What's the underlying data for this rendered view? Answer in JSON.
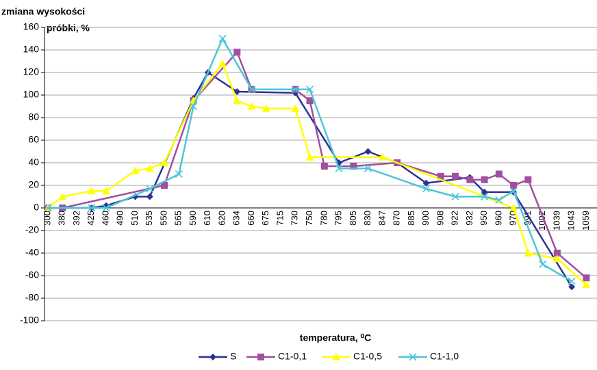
{
  "chart_data": {
    "type": "line",
    "ylabel": [
      "zmiana wysokości",
      "próbki, %"
    ],
    "xlabel": "temperatura, ⁰C",
    "categories": [
      "300",
      "380",
      "392",
      "425",
      "460",
      "490",
      "510",
      "535",
      "550",
      "565",
      "590",
      "610",
      "620",
      "634",
      "660",
      "675",
      "715",
      "730",
      "750",
      "780",
      "795",
      "805",
      "830",
      "847",
      "870",
      "885",
      "900",
      "908",
      "922",
      "932",
      "950",
      "960",
      "970",
      "991",
      "1002",
      "1039",
      "1043",
      "1059"
    ],
    "ylim": [
      -100,
      160
    ],
    "yticks": [
      -100,
      -80,
      -60,
      -40,
      -20,
      0,
      20,
      40,
      60,
      80,
      100,
      120,
      140,
      160
    ],
    "grid": true,
    "legend": "bottom",
    "series": [
      {
        "name": "S",
        "color": "#2e3192",
        "marker": "diamond",
        "values": [
          0,
          null,
          null,
          0,
          2,
          null,
          10,
          10,
          null,
          null,
          97,
          120,
          null,
          103,
          null,
          null,
          null,
          102,
          null,
          null,
          40,
          null,
          50,
          null,
          40,
          null,
          22,
          null,
          null,
          27,
          14,
          null,
          14,
          null,
          null,
          null,
          -70,
          null
        ]
      },
      {
        "name": "C1-0,1",
        "color": "#a14fa0",
        "marker": "square",
        "values": [
          0,
          0,
          null,
          null,
          null,
          null,
          null,
          null,
          20,
          null,
          95,
          null,
          null,
          138,
          105,
          null,
          null,
          105,
          95,
          37,
          null,
          37,
          null,
          null,
          40,
          null,
          null,
          28,
          28,
          25,
          25,
          30,
          20,
          25,
          null,
          -40,
          null,
          -62
        ]
      },
      {
        "name": "C1-0,5",
        "color": "#ffff00",
        "marker": "triangle",
        "values": [
          0,
          10,
          null,
          15,
          15,
          null,
          33,
          35,
          40,
          null,
          95,
          null,
          128,
          95,
          90,
          88,
          null,
          88,
          45,
          null,
          null,
          null,
          null,
          45,
          null,
          null,
          null,
          null,
          null,
          null,
          null,
          null,
          0,
          -40,
          null,
          -45,
          null,
          -68
        ]
      },
      {
        "name": "C1-1,0",
        "color": "#4bc6d8",
        "marker": "cross",
        "values": [
          0,
          null,
          null,
          0,
          0,
          null,
          null,
          17,
          null,
          30,
          90,
          null,
          150,
          null,
          105,
          null,
          null,
          105,
          105,
          null,
          35,
          null,
          35,
          null,
          null,
          null,
          17,
          null,
          10,
          null,
          10,
          7,
          15,
          null,
          -50,
          null,
          -65,
          null
        ]
      }
    ]
  }
}
